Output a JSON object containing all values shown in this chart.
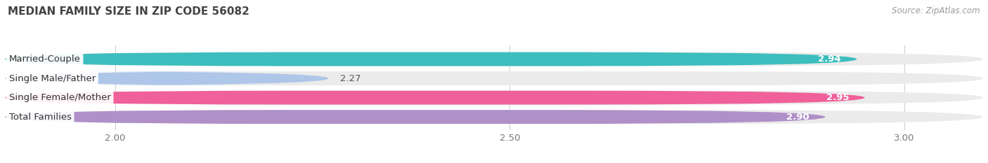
{
  "title": "MEDIAN FAMILY SIZE IN ZIP CODE 56082",
  "source": "Source: ZipAtlas.com",
  "categories": [
    "Married-Couple",
    "Single Male/Father",
    "Single Female/Mother",
    "Total Families"
  ],
  "values": [
    2.94,
    2.27,
    2.95,
    2.9
  ],
  "bar_colors": [
    "#3dbdbd",
    "#aec6e8",
    "#f0609a",
    "#b090c8"
  ],
  "bar_bg_colors": [
    "#ebebeb",
    "#ebebeb",
    "#ebebeb",
    "#ebebeb"
  ],
  "xlim_min": 1.86,
  "xlim_max": 3.1,
  "xticks": [
    2.0,
    2.5,
    3.0
  ],
  "background_color": "#ffffff",
  "title_fontsize": 11,
  "source_fontsize": 8.5,
  "tick_fontsize": 9.5,
  "cat_label_fontsize": 9.5,
  "value_fontsize": 9.5,
  "bar_height": 0.72,
  "bar_gap": 0.06
}
